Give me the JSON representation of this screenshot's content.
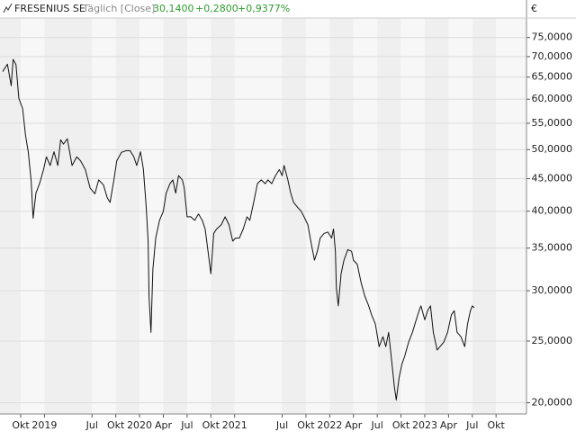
{
  "chart_data": {
    "type": "line",
    "title": "FRESENIUS SE",
    "subtitle": "Täglich [Close]",
    "last": "30,1400",
    "change": "+0,2800",
    "change_pct": "+0,9377%",
    "y_unit": "€",
    "color": "#111111",
    "header_color": "#2e9b2e",
    "log_scale": true,
    "grid": true,
    "xlim": [
      2018.532,
      2024.07
    ],
    "ylim": [
      19.2,
      80.5
    ],
    "xticks": [
      {
        "value": 2018.75,
        "label": "Okt"
      },
      2019,
      {
        "value": 2019.5,
        "label": "Jul"
      },
      {
        "value": 2019.75,
        "label": "Okt"
      },
      2020,
      {
        "value": 2020.25,
        "label": "Apr"
      },
      {
        "value": 2020.5,
        "label": "Jul"
      },
      {
        "value": 2020.75,
        "label": "Okt"
      },
      2021,
      {
        "value": 2021.5,
        "label": "Jul"
      },
      {
        "value": 2021.75,
        "label": "Okt"
      },
      2022,
      {
        "value": 2022.25,
        "label": "Apr"
      },
      {
        "value": 2022.5,
        "label": "Jul"
      },
      {
        "value": 2022.75,
        "label": "Okt"
      },
      2023,
      {
        "value": 2023.25,
        "label": "Apr"
      },
      {
        "value": 2023.5,
        "label": "Jul"
      },
      {
        "value": 2023.75,
        "label": "Okt"
      }
    ],
    "yticks": [
      {
        "value": 20,
        "label": "20,0000"
      },
      {
        "value": 25,
        "label": "25,0000"
      },
      {
        "value": 30,
        "label": "30,0000"
      },
      {
        "value": 35,
        "label": "35,0000"
      },
      {
        "value": 40,
        "label": "40,0000"
      },
      {
        "value": 45,
        "label": "45,0000"
      },
      {
        "value": 50,
        "label": "50,0000"
      },
      {
        "value": 55,
        "label": "55,0000"
      },
      {
        "value": 60,
        "label": "60,0000"
      },
      {
        "value": 65,
        "label": "65,0000"
      },
      {
        "value": 70,
        "label": "70,0000"
      },
      {
        "value": 75,
        "label": "75,0000"
      }
    ],
    "x": [
      2018.56,
      2018.61,
      2018.65,
      2018.67,
      2018.7,
      2018.73,
      2018.77,
      2018.8,
      2018.83,
      2018.86,
      2018.88,
      2018.91,
      2018.95,
      2018.99,
      2019.02,
      2019.06,
      2019.1,
      2019.14,
      2019.17,
      2019.2,
      2019.24,
      2019.29,
      2019.34,
      2019.38,
      2019.43,
      2019.48,
      2019.53,
      2019.57,
      2019.62,
      2019.66,
      2019.69,
      2019.73,
      2019.76,
      2019.81,
      2019.86,
      2019.9,
      2019.94,
      2019.97,
      2020.01,
      2020.04,
      2020.07,
      2020.09,
      2020.1,
      2020.12,
      2020.14,
      2020.17,
      2020.21,
      2020.25,
      2020.28,
      2020.32,
      2020.35,
      2020.38,
      2020.41,
      2020.45,
      2020.47,
      2020.5,
      2020.54,
      2020.58,
      2020.62,
      2020.66,
      2020.69,
      2020.72,
      2020.75,
      2020.78,
      2020.81,
      2020.86,
      2020.9,
      2020.94,
      2020.98,
      2021.01,
      2021.05,
      2021.09,
      2021.13,
      2021.16,
      2021.2,
      2021.24,
      2021.28,
      2021.32,
      2021.35,
      2021.39,
      2021.43,
      2021.47,
      2021.5,
      2021.52,
      2021.56,
      2021.59,
      2021.62,
      2021.66,
      2021.7,
      2021.73,
      2021.77,
      2021.81,
      2021.84,
      2021.87,
      2021.9,
      2021.94,
      2021.98,
      2022.02,
      2022.04,
      2022.06,
      2022.07,
      2022.09,
      2022.12,
      2022.15,
      2022.19,
      2022.23,
      2022.25,
      2022.29,
      2022.33,
      2022.37,
      2022.41,
      2022.44,
      2022.48,
      2022.52,
      2022.56,
      2022.59,
      2022.62,
      2022.65,
      2022.68,
      2022.7,
      2022.73,
      2022.76,
      2022.79,
      2022.83,
      2022.87,
      2022.91,
      2022.94,
      2022.96,
      2023.0,
      2023.03,
      2023.06,
      2023.09,
      2023.13,
      2023.16,
      2023.2,
      2023.24,
      2023.28,
      2023.31,
      2023.34,
      2023.38,
      2023.42,
      2023.45,
      2023.48,
      2023.5,
      2023.52
    ],
    "values": [
      66.3,
      68.1,
      63,
      69.3,
      68,
      60.2,
      58,
      52.7,
      49.5,
      44.6,
      39,
      42.7,
      44.3,
      46.5,
      48.7,
      47.2,
      49.6,
      47.2,
      51.8,
      51,
      52,
      47.2,
      48.7,
      48,
      46.5,
      43.5,
      42.6,
      44.8,
      44,
      42,
      41.3,
      44.8,
      48,
      49.5,
      49.8,
      49.8,
      48.7,
      47.2,
      49.6,
      46.6,
      40.6,
      35.9,
      29.3,
      25.8,
      32.4,
      36.3,
      38.7,
      40,
      42.7,
      44.2,
      44.8,
      42.7,
      45.5,
      44.8,
      43.5,
      39.2,
      39.2,
      38.7,
      39.6,
      38.7,
      37.5,
      34.6,
      31.9,
      36.9,
      37.5,
      38.1,
      39.2,
      38.1,
      35.9,
      36.3,
      36.3,
      37.5,
      39.2,
      38.7,
      41.3,
      44.2,
      44.8,
      44.2,
      44.8,
      44.2,
      45.5,
      46.5,
      45.5,
      47.2,
      44.8,
      42.7,
      41.3,
      40.6,
      40,
      39.2,
      38.1,
      35.3,
      33.5,
      34.6,
      36.3,
      36.9,
      37.1,
      36.3,
      37.5,
      34.6,
      30.3,
      28.4,
      31.9,
      33.5,
      34.8,
      34.6,
      33.5,
      33,
      30.9,
      29.4,
      28.4,
      27.5,
      26.6,
      24.5,
      25.4,
      24.5,
      25.8,
      23.4,
      21.2,
      20.2,
      21.9,
      23,
      23.7,
      24.9,
      25.8,
      27,
      27.9,
      28.4,
      27,
      27.9,
      28.4,
      25.8,
      24.2,
      24.5,
      24.9,
      25.8,
      27.5,
      27.9,
      25.8,
      25.4,
      24.5,
      26.6,
      27.9,
      28.4,
      28.2
    ]
  }
}
